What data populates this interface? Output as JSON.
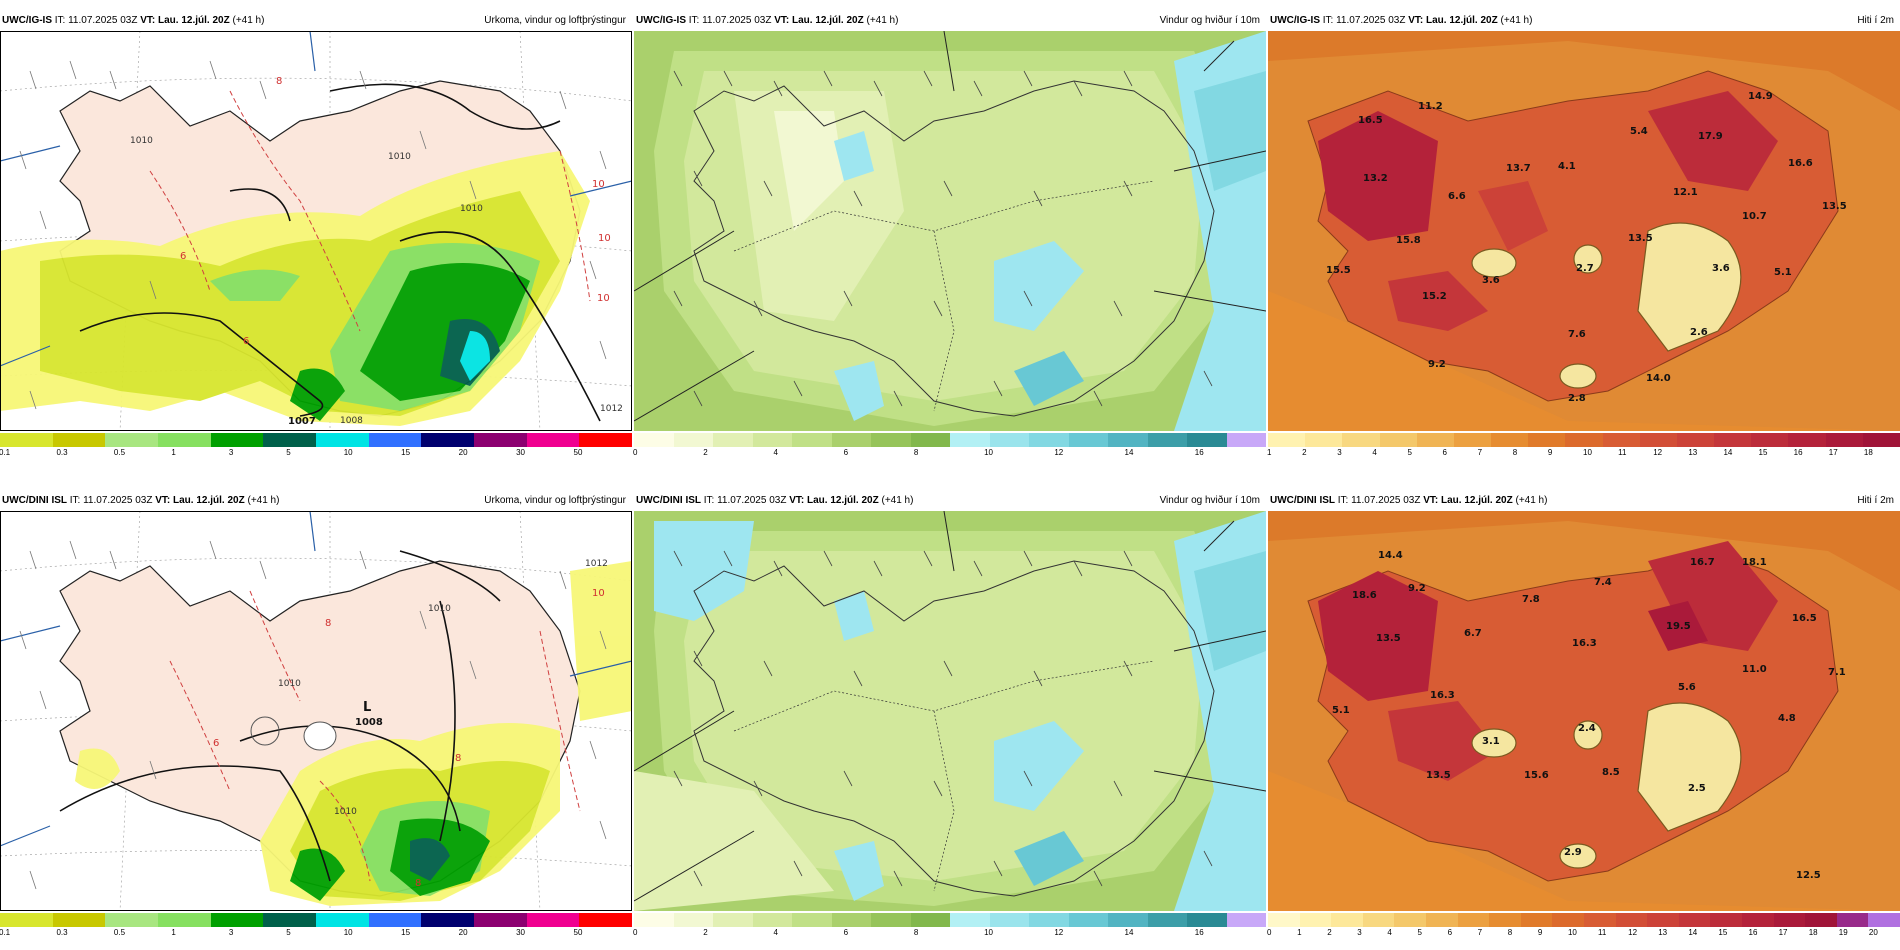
{
  "rows": [
    {
      "model": "UWC/IG-IS",
      "issue": "IT: 11.07.2025 03Z",
      "vt_label": "VT:",
      "vt_value": "Lau. 12.júl. 20Z",
      "lead": "(+41 h)",
      "pressure_centre": {
        "letter": "",
        "value": "1007"
      },
      "isobar_labels": [
        "1010",
        "1010",
        "1008",
        "1012",
        "1010"
      ],
      "red_labels": [
        "8",
        "6",
        "6",
        "10",
        "10",
        "10"
      ],
      "temps": [
        "16.5",
        "11.2",
        "13.7",
        "5.4",
        "17.9",
        "14.9",
        "16.6",
        "13.2",
        "6.6",
        "4.1",
        "12.1",
        "10.7",
        "13.5",
        "15.8",
        "13.5",
        "15.5",
        "3.6",
        "2.7",
        "3.6",
        "5.1",
        "15.2",
        "7.6",
        "2.6",
        "9.2",
        "14.0",
        "2.8"
      ],
      "temp_ticks": [
        "1",
        "2",
        "3",
        "4",
        "5",
        "6",
        "7",
        "8",
        "9",
        "10",
        "11",
        "12",
        "13",
        "14",
        "15",
        "16",
        "17",
        "18"
      ]
    },
    {
      "model": "UWC/DINI ISL",
      "issue": "IT: 11.07.2025 03Z",
      "vt_label": "VT:",
      "vt_value": "Lau. 12.júl. 20Z",
      "lead": "(+41 h)",
      "pressure_centre": {
        "letter": "L",
        "value": "1008"
      },
      "isobar_labels": [
        "1012",
        "1010",
        "1010",
        "1010"
      ],
      "red_labels": [
        "10",
        "8",
        "6",
        "8",
        "8"
      ],
      "temps": [
        "14.4",
        "16.7",
        "18.1",
        "18.6",
        "9.2",
        "7.8",
        "7.4",
        "19.5",
        "16.5",
        "6.7",
        "13.5",
        "16.3",
        "11.0",
        "7.1",
        "16.3",
        "5.6",
        "5.1",
        "3.1",
        "2.4",
        "4.8",
        "13.5",
        "15.6",
        "8.5",
        "2.5",
        "2.9",
        "12.5"
      ],
      "temp_ticks": [
        "0",
        "1",
        "2",
        "3",
        "4",
        "5",
        "6",
        "7",
        "8",
        "9",
        "10",
        "11",
        "12",
        "13",
        "14",
        "15",
        "16",
        "17",
        "18",
        "19",
        "20"
      ]
    }
  ],
  "titles": {
    "precip": "Úrkoma, vindur og loftþrýstingur",
    "wind": "Vindur og hviður í 10m",
    "temp": "Hiti í 2m"
  },
  "scales": {
    "precip_ticks": [
      "0.1",
      "0.3",
      "0.5",
      "1",
      "3",
      "5",
      "10",
      "15",
      "20",
      "30",
      "50"
    ],
    "precip_colors": [
      "#d8e62e",
      "#c8c800",
      "#a8e680",
      "#86e060",
      "#00a000",
      "#00604a",
      "#00e4e4",
      "#3070ff",
      "#00006e",
      "#8c0070",
      "#f00090",
      "#ff0000"
    ],
    "wind_ticks": [
      "0",
      "2",
      "4",
      "6",
      "8",
      "10",
      "12",
      "14",
      "16"
    ],
    "wind_colors": [
      "#fdfde6",
      "#f2f8d2",
      "#e2f0b4",
      "#d2e89c",
      "#c0e086",
      "#aad06c",
      "#96c45a",
      "#82b84c",
      "#b2f0f4",
      "#9ae4ec",
      "#82d8e2",
      "#68c8d4",
      "#52b4c2",
      "#3c9ea8",
      "#2a8a94",
      "#c8a8f8"
    ],
    "temp_colors_top": [
      "#fff2b0",
      "#fde89a",
      "#f8d880",
      "#f4c86a",
      "#f0b454",
      "#eca040",
      "#e68c30",
      "#e07a2a",
      "#dc6a2c",
      "#d85c34",
      "#d24e36",
      "#cc4238",
      "#c4363a",
      "#bc2c3a",
      "#b4223a",
      "#aa1a3a",
      "#a01438"
    ],
    "temp_colors_bottom": [
      "#fff8c8",
      "#fff2b0",
      "#fde89a",
      "#f8d880",
      "#f4c86a",
      "#f0b454",
      "#eca040",
      "#e68c30",
      "#e07a2a",
      "#dc6a2c",
      "#d85c34",
      "#d24e36",
      "#cc4238",
      "#c4363a",
      "#bc2c3a",
      "#b4223a",
      "#aa1a3a",
      "#a01438",
      "#982a8a",
      "#b070e0"
    ]
  },
  "colors": {
    "land": "#fbe7dc",
    "ocean_precip": "#ffffff",
    "ocean_temp": "#e08a34",
    "glacier_temp": "#f5e6a0",
    "wind_cyan": "#9ee6f0"
  }
}
